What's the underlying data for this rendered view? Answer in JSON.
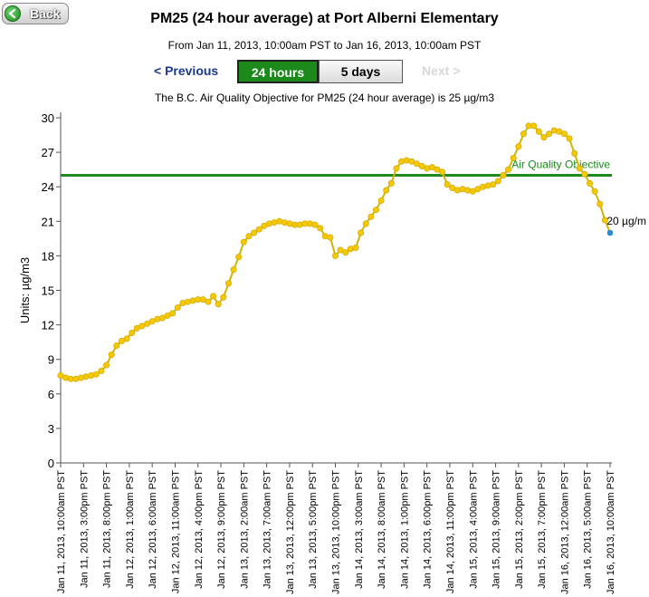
{
  "nav": {
    "back_label": "Back",
    "previous_label": "< Previous",
    "next_label": "Next >"
  },
  "header": {
    "title": "PM25 (24 hour average) at Port Alberni Elementary",
    "subtitle": "From Jan 11, 2013, 10:00am PST to Jan 16, 2013, 10:00am PST"
  },
  "tabs": {
    "active": "24 hours",
    "other": "5 days"
  },
  "objective_note": "The B.C. Air Quality Objective for PM25 (24 hour average) is 25 µg/m3",
  "colors": {
    "line": "#d4b400",
    "marker": "#f5c800",
    "objective": "#1e8a1e",
    "last_point": "#2a8ad8",
    "active_tab": "#1b8a1b",
    "link": "#1b3a8c"
  },
  "chart_data": {
    "type": "line",
    "ylabel": "Units: µg/m3",
    "ylim": [
      0,
      30
    ],
    "yticks": [
      0,
      3,
      6,
      9,
      12,
      15,
      18,
      21,
      24,
      27,
      30
    ],
    "objective": {
      "value": 25,
      "label": "Air Quality Objective"
    },
    "last_label": "20 µg/m",
    "xtick_labels": [
      "Jan 11, 2013, 10:00am PST",
      "Jan 11, 2013, 3:00pm PST",
      "Jan 11, 2013, 8:00pm PST",
      "Jan 12, 2013, 1:00am PST",
      "Jan 12, 2013, 6:00am PST",
      "Jan 12, 2013, 11:00am PST",
      "Jan 12, 2013, 4:00pm PST",
      "Jan 12, 2013, 9:00pm PST",
      "Jan 13, 2013, 2:00am PST",
      "Jan 13, 2013, 7:00am PST",
      "Jan 13, 2013, 12:00pm PST",
      "Jan 13, 2013, 5:00pm PST",
      "Jan 13, 2013, 10:00pm PST",
      "Jan 14, 2013, 3:00am PST",
      "Jan 14, 2013, 8:00am PST",
      "Jan 14, 2013, 1:00pm PST",
      "Jan 14, 2013, 6:00pm PST",
      "Jan 14, 2013, 11:00pm PST",
      "Jan 15, 2013, 4:00am PST",
      "Jan 15, 2013, 9:00am PST",
      "Jan 15, 2013, 2:00pm PST",
      "Jan 15, 2013, 7:00pm PST",
      "Jan 16, 2013, 12:00am PST",
      "Jan 16, 2013, 5:00am PST",
      "Jan 16, 2013, 10:00am PST"
    ],
    "series": [
      {
        "values": [
          7.6,
          7.4,
          7.3,
          7.3,
          7.4,
          7.5,
          7.6,
          7.7,
          8.0,
          8.5,
          9.4,
          10.2,
          10.6,
          10.8,
          11.3,
          11.7,
          11.9,
          12.1,
          12.3,
          12.5,
          12.6,
          12.8,
          13.0,
          13.5,
          13.9,
          14.0,
          14.1,
          14.2,
          14.2,
          14.0,
          14.5,
          13.8,
          14.4,
          15.6,
          16.8,
          17.9,
          19.2,
          19.7,
          20.0,
          20.3,
          20.6,
          20.8,
          20.9,
          21.0,
          20.9,
          20.8,
          20.7,
          20.7,
          20.8,
          20.8,
          20.7,
          20.4,
          19.7,
          19.6,
          18.0,
          18.5,
          18.3,
          18.6,
          18.7,
          20.0,
          20.8,
          21.4,
          22.0,
          22.8,
          23.7,
          24.3,
          25.6,
          26.2,
          26.3,
          26.2,
          26.0,
          25.8,
          25.6,
          25.7,
          25.5,
          25.3,
          24.2,
          23.9,
          23.7,
          23.8,
          23.7,
          23.6,
          23.8,
          24.0,
          24.1,
          24.2,
          24.5,
          25.0,
          25.5,
          26.5,
          27.5,
          28.6,
          29.3,
          29.3,
          28.8,
          28.3,
          28.6,
          28.9,
          28.8,
          28.6,
          28.2,
          26.9,
          25.6,
          25.1,
          24.3,
          23.6,
          22.5,
          21.1,
          20.0
        ]
      }
    ]
  }
}
